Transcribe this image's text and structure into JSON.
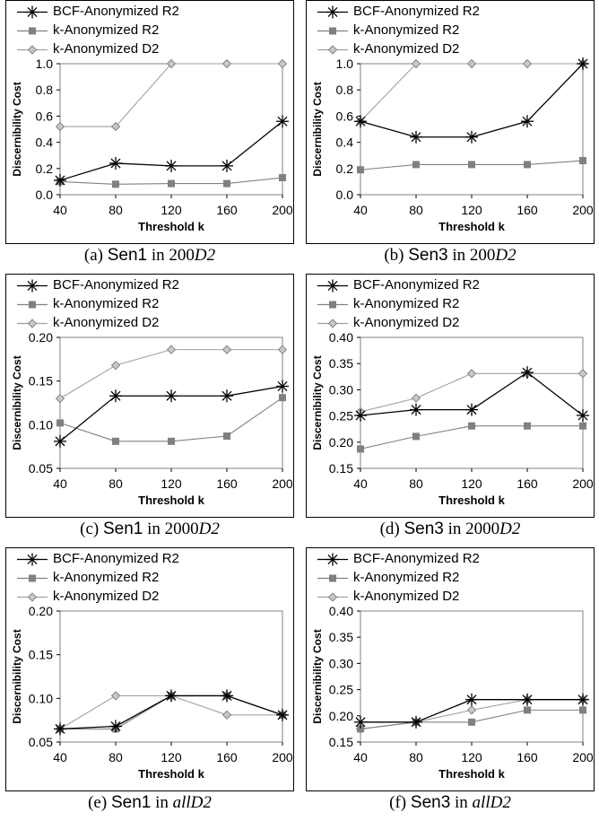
{
  "panels": [
    {
      "caption": {
        "label": "(a)",
        "sen": "Sen1",
        "in": "in",
        "dataset_num": "200",
        "dataset_var": "D2"
      },
      "chart_data": {
        "type": "line",
        "xlabel": "Threshold k",
        "ylabel": "Discernibility Cost",
        "x": [
          40,
          80,
          120,
          160,
          200
        ],
        "ylim": [
          0,
          1.0
        ],
        "yticks": [
          "0.0",
          "0.2",
          "0.4",
          "0.6",
          "0.8",
          "1.0"
        ],
        "series": [
          {
            "name": "BCF-Anonymized R2",
            "values": [
              0.11,
              0.24,
              0.22,
              0.22,
              0.56
            ]
          },
          {
            "name": "k-Anonymized R2",
            "values": [
              0.1,
              0.08,
              0.085,
              0.085,
              0.13
            ]
          },
          {
            "name": "k-Anonymized D2",
            "values": [
              0.52,
              0.52,
              1.0,
              1.0,
              1.0
            ]
          }
        ]
      }
    },
    {
      "caption": {
        "label": "(b)",
        "sen": "Sen3",
        "in": "in",
        "dataset_num": "200",
        "dataset_var": "D2"
      },
      "chart_data": {
        "type": "line",
        "xlabel": "Threshold k",
        "ylabel": "Discernibility Cost",
        "x": [
          40,
          80,
          120,
          160,
          200
        ],
        "ylim": [
          0,
          1.0
        ],
        "yticks": [
          "0.0",
          "0.2",
          "0.4",
          "0.6",
          "0.8",
          "1.0"
        ],
        "series": [
          {
            "name": "BCF-Anonymized R2",
            "values": [
              0.56,
              0.44,
              0.44,
              0.56,
              1.0
            ]
          },
          {
            "name": "k-Anonymized R2",
            "values": [
              0.19,
              0.23,
              0.23,
              0.23,
              0.26
            ]
          },
          {
            "name": "k-Anonymized D2",
            "values": [
              0.56,
              1.0,
              1.0,
              1.0,
              1.0
            ]
          }
        ]
      }
    },
    {
      "caption": {
        "label": "(c)",
        "sen": "Sen1",
        "in": "in",
        "dataset_num": "2000",
        "dataset_var": "D2"
      },
      "chart_data": {
        "type": "line",
        "xlabel": "Threshold k",
        "ylabel": "Discernibility Cost",
        "x": [
          40,
          80,
          120,
          160,
          200
        ],
        "ylim": [
          0.05,
          0.2
        ],
        "yticks": [
          "0.05",
          "0.10",
          "0.15",
          "0.20"
        ],
        "series": [
          {
            "name": "BCF-Anonymized R2",
            "values": [
              0.081,
              0.133,
              0.133,
              0.133,
              0.144
            ]
          },
          {
            "name": "k-Anonymized R2",
            "values": [
              0.102,
              0.081,
              0.081,
              0.087,
              0.131
            ]
          },
          {
            "name": "k-Anonymized D2",
            "values": [
              0.13,
              0.168,
              0.186,
              0.186,
              0.186
            ]
          }
        ]
      }
    },
    {
      "caption": {
        "label": "(d)",
        "sen": "Sen3",
        "in": "in",
        "dataset_num": "2000",
        "dataset_var": "D2"
      },
      "chart_data": {
        "type": "line",
        "xlabel": "Threshold k",
        "ylabel": "Discernibility Cost",
        "x": [
          40,
          80,
          120,
          160,
          200
        ],
        "ylim": [
          0.15,
          0.4
        ],
        "yticks": [
          "0.15",
          "0.20",
          "0.25",
          "0.30",
          "0.35",
          "0.40"
        ],
        "series": [
          {
            "name": "BCF-Anonymized R2",
            "values": [
              0.251,
              0.262,
              0.262,
              0.333,
              0.251
            ]
          },
          {
            "name": "k-Anonymized R2",
            "values": [
              0.187,
              0.211,
              0.231,
              0.231,
              0.231
            ]
          },
          {
            "name": "k-Anonymized D2",
            "values": [
              0.258,
              0.284,
              0.331,
              0.331,
              0.331
            ]
          }
        ]
      }
    },
    {
      "caption": {
        "label": "(e)",
        "sen": "Sen1",
        "in": "in",
        "dataset_num": "",
        "dataset_var": "allD2"
      },
      "chart_data": {
        "type": "line",
        "xlabel": "Threshold k",
        "ylabel": "Discernibility Cost",
        "x": [
          40,
          80,
          120,
          160,
          200
        ],
        "ylim": [
          0.05,
          0.2
        ],
        "yticks": [
          "0.05",
          "0.10",
          "0.15",
          "0.20"
        ],
        "series": [
          {
            "name": "BCF-Anonymized R2",
            "values": [
              0.065,
              0.068,
              0.103,
              0.103,
              0.081
            ]
          },
          {
            "name": "k-Anonymized R2",
            "values": [
              0.065,
              0.065,
              0.103,
              0.103,
              0.081
            ]
          },
          {
            "name": "k-Anonymized D2",
            "values": [
              0.065,
              0.103,
              0.103,
              0.081,
              0.081
            ]
          }
        ]
      }
    },
    {
      "caption": {
        "label": "(f)",
        "sen": "Sen3",
        "in": "in",
        "dataset_num": "",
        "dataset_var": "allD2"
      },
      "chart_data": {
        "type": "line",
        "xlabel": "Threshold k",
        "ylabel": "Discernibility Cost",
        "x": [
          40,
          80,
          120,
          160,
          200
        ],
        "ylim": [
          0.15,
          0.4
        ],
        "yticks": [
          "0.15",
          "0.20",
          "0.25",
          "0.30",
          "0.35",
          "0.40"
        ],
        "series": [
          {
            "name": "BCF-Anonymized R2",
            "values": [
              0.188,
              0.188,
              0.231,
              0.231,
              0.231
            ]
          },
          {
            "name": "k-Anonymized R2",
            "values": [
              0.175,
              0.188,
              0.188,
              0.211,
              0.211
            ]
          },
          {
            "name": "k-Anonymized D2",
            "values": [
              0.175,
              0.188,
              0.211,
              0.231,
              0.231
            ]
          }
        ]
      }
    }
  ],
  "series_styles": [
    {
      "color": "#000000",
      "marker": "star"
    },
    {
      "color": "#808080",
      "marker": "square"
    },
    {
      "color": "#a0a0a0",
      "marker": "diamond"
    }
  ]
}
